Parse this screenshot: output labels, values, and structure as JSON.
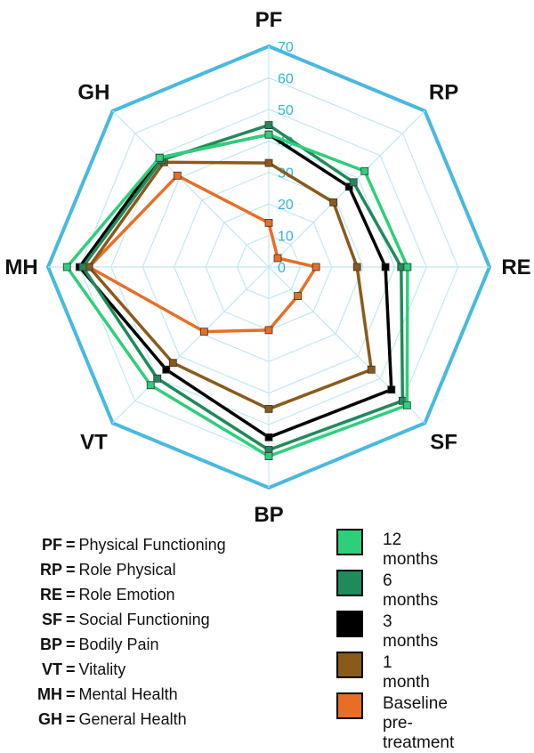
{
  "chart_data": {
    "type": "radar",
    "axes": [
      "PF",
      "RP",
      "RE",
      "SF",
      "BP",
      "VT",
      "MH",
      "GH"
    ],
    "rmax": 70,
    "ticks": [
      0,
      10,
      20,
      30,
      40,
      50,
      60,
      70
    ],
    "grid": true,
    "series": [
      {
        "name": "12 months",
        "color": "#2ecf7a",
        "values": [
          42,
          43,
          44,
          62,
          60,
          53,
          64,
          49
        ]
      },
      {
        "name": "6 months",
        "color": "#1f8a5a",
        "values": [
          45,
          38,
          42,
          60,
          58,
          50,
          59,
          48
        ]
      },
      {
        "name": "3 months",
        "color": "#000000",
        "values": [
          42,
          36,
          37,
          55,
          54,
          46,
          60,
          49
        ]
      },
      {
        "name": "1 month",
        "color": "#8a5a1c",
        "values": [
          33,
          29,
          28,
          46,
          45,
          43,
          57,
          47
        ]
      },
      {
        "name": "Baseline pre-treatment",
        "color": "#e86e26",
        "values": [
          14,
          4,
          15,
          13,
          20,
          29,
          57,
          41
        ]
      }
    ],
    "abbreviations": [
      {
        "key": "PF",
        "eq": "=",
        "label": "Physical Functioning"
      },
      {
        "key": "RP",
        "eq": "=",
        "label": "Role Physical"
      },
      {
        "key": "RE",
        "eq": "=",
        "label": "Role Emotion"
      },
      {
        "key": "SF",
        "eq": "=",
        "label": "Social Functioning"
      },
      {
        "key": "BP",
        "eq": "=",
        "label": "Bodily Pain"
      },
      {
        "key": "VT",
        "eq": "=",
        "label": "Vitality"
      },
      {
        "key": "MH",
        "eq": "=",
        "label": "Mental Health"
      },
      {
        "key": "GH",
        "eq": "=",
        "label": "General Health"
      }
    ],
    "legend": [
      {
        "label": "12 months",
        "color": "#2ecf7a"
      },
      {
        "label": "6 months",
        "color": "#1f8a5a"
      },
      {
        "label": "3 months",
        "color": "#000000"
      },
      {
        "label": "1 month",
        "color": "#8a5a1c"
      },
      {
        "label_line1": "Baseline",
        "label_line2": "pre-treatment",
        "color": "#e86e26"
      }
    ],
    "colors": {
      "outer_frame": "#48b9e0",
      "grid": "#bfe8f5",
      "tick": "#2fb6dc"
    }
  }
}
